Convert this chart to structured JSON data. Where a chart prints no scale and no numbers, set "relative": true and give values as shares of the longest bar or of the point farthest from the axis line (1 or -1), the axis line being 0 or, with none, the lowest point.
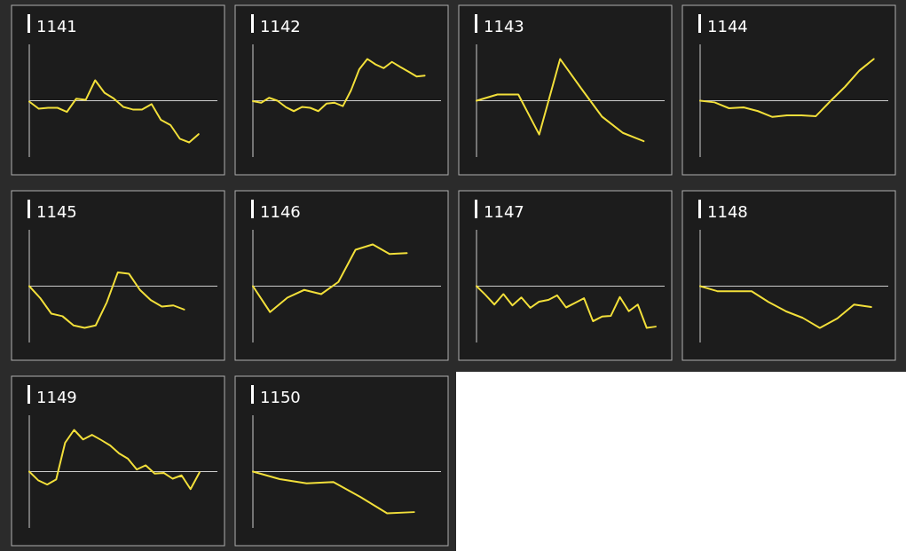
{
  "chart_data": [
    {
      "type": "line",
      "title": "1141",
      "relative": true,
      "color": "#f2df3a",
      "categories": [
        null,
        null,
        null,
        null,
        null,
        null,
        null,
        null,
        null,
        null,
        null,
        null,
        null,
        null,
        null,
        null,
        null,
        null,
        null,
        null,
        null
      ],
      "values": [
        -0.02,
        -0.19,
        -0.17,
        -0.17,
        -0.27,
        0.05,
        0.02,
        0.49,
        0.19,
        0.05,
        -0.15,
        -0.21,
        -0.21,
        -0.08,
        -0.46,
        -0.58,
        -0.91,
        -1,
        -0.8,
        null,
        null
      ]
    },
    {
      "type": "line",
      "title": "1142",
      "relative": true,
      "color": "#f2df3a",
      "categories": [
        null,
        null,
        null,
        null,
        null,
        null,
        null,
        null,
        null,
        null,
        null,
        null,
        null,
        null,
        null,
        null,
        null,
        null,
        null,
        null,
        null,
        null,
        null,
        null
      ],
      "values": [
        -0.01,
        -0.05,
        0.07,
        0,
        -0.15,
        -0.25,
        -0.15,
        -0.17,
        -0.25,
        -0.07,
        -0.05,
        -0.13,
        0.25,
        0.75,
        1,
        0.87,
        0.78,
        0.93,
        0.81,
        0.7,
        0.58,
        0.6,
        null,
        null
      ]
    },
    {
      "type": "line",
      "title": "1143",
      "relative": true,
      "color": "#f2df3a",
      "categories": [
        null,
        null,
        null,
        null,
        null,
        null,
        null,
        null,
        null,
        null
      ],
      "values": [
        0,
        0.15,
        0.15,
        -0.81,
        1,
        0.3,
        -0.38,
        -0.77,
        -0.97,
        null
      ]
    },
    {
      "type": "line",
      "title": "1144",
      "relative": true,
      "color": "#f2df3a",
      "categories": [
        null,
        null,
        null,
        null,
        null,
        null,
        null,
        null,
        null,
        null,
        null,
        null,
        null,
        null
      ],
      "values": [
        0,
        -0.04,
        -0.18,
        -0.16,
        -0.25,
        -0.39,
        -0.35,
        -0.35,
        -0.37,
        -0.01,
        0.33,
        0.72,
        1,
        null
      ]
    },
    {
      "type": "line",
      "title": "1145",
      "relative": true,
      "color": "#f2df3a",
      "categories": [
        null,
        null,
        null,
        null,
        null,
        null,
        null,
        null,
        null,
        null,
        null,
        null,
        null,
        null,
        null,
        null,
        null,
        null
      ],
      "values": [
        0,
        -0.29,
        -0.66,
        -0.72,
        -0.94,
        -1,
        -0.94,
        -0.39,
        0.33,
        0.3,
        -0.09,
        -0.34,
        -0.49,
        -0.46,
        -0.56,
        null,
        null,
        null
      ]
    },
    {
      "type": "line",
      "title": "1146",
      "relative": true,
      "color": "#f2df3a",
      "categories": [
        null,
        null,
        null,
        null,
        null,
        null,
        null,
        null,
        null,
        null,
        null,
        null
      ],
      "values": [
        0,
        -0.62,
        -0.28,
        -0.09,
        -0.19,
        0.1,
        0.87,
        1,
        0.77,
        0.79,
        null,
        null
      ]
    },
    {
      "type": "line",
      "title": "1147",
      "relative": true,
      "color": "#f2df3a",
      "categories": [
        null,
        null,
        null,
        null,
        null,
        null,
        null,
        null,
        null,
        null,
        null,
        null,
        null,
        null,
        null,
        null,
        null,
        null,
        null,
        null,
        null,
        null
      ],
      "values": [
        0,
        -0.21,
        -0.44,
        -0.19,
        -0.46,
        -0.27,
        -0.52,
        -0.37,
        -0.33,
        -0.22,
        -0.51,
        -0.4,
        -0.29,
        -0.84,
        -0.73,
        -0.71,
        -0.26,
        -0.6,
        -0.44,
        -1,
        -0.97,
        null
      ]
    },
    {
      "type": "line",
      "title": "1148",
      "relative": true,
      "color": "#f2df3a",
      "categories": [
        null,
        null,
        null,
        null,
        null,
        null,
        null,
        null,
        null,
        null,
        null,
        null
      ],
      "values": [
        0,
        -0.12,
        -0.12,
        -0.12,
        -0.38,
        -0.6,
        -0.76,
        -1,
        -0.78,
        -0.44,
        -0.5,
        null
      ]
    },
    {
      "type": "line",
      "title": "1149",
      "relative": true,
      "color": "#f2df3a",
      "categories": [
        null,
        null,
        null,
        null,
        null,
        null,
        null,
        null,
        null,
        null,
        null,
        null,
        null,
        null,
        null,
        null,
        null,
        null,
        null,
        null,
        null,
        null
      ],
      "values": [
        0,
        -0.21,
        -0.31,
        -0.19,
        0.69,
        1,
        0.77,
        0.88,
        0.76,
        0.63,
        0.44,
        0.31,
        0.05,
        0.15,
        -0.05,
        -0.03,
        -0.17,
        -0.09,
        -0.42,
        -0.02,
        null,
        null
      ]
    },
    {
      "type": "line",
      "title": "1150",
      "relative": true,
      "color": "#f2df3a",
      "categories": [
        null,
        null,
        null,
        null,
        null,
        null,
        null,
        null
      ],
      "values": [
        0,
        -0.18,
        -0.28,
        -0.25,
        -0.61,
        -1,
        -0.97,
        null
      ]
    }
  ]
}
